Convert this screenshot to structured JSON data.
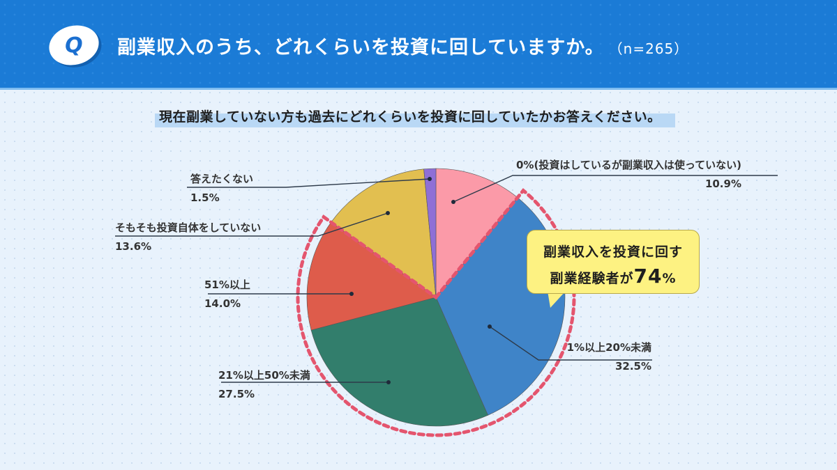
{
  "header": {
    "badge": "Q",
    "title": "副業収入のうち、どれくらいを投資に回していますか。",
    "sample_size": "（n=265）"
  },
  "subtitle": "現在副業していない方も過去にどれくらいを投資に回していたかお答えください。",
  "callout": {
    "line1": "副業収入を投資に回す",
    "line2_prefix": "副業経験者が",
    "line2_value": "74",
    "line2_suffix": "%"
  },
  "colors": {
    "header_bg": "#1b7bd6",
    "highlight_dash": "#e4556e",
    "callout_bg": "#fdf282"
  },
  "chart_data": {
    "type": "pie",
    "title": "副業収入のうち、どれくらいを投資に回していますか。（n=265）",
    "start_angle_deg": 0,
    "direction": "clockwise",
    "slices": [
      {
        "label": "0%(投資はしているが副業収入は使っていない)",
        "value": 10.9,
        "display": "10.9%",
        "color": "#fb9aa8"
      },
      {
        "label": "1%以上20%未満",
        "value": 32.5,
        "display": "32.5%",
        "color": "#3f84c8"
      },
      {
        "label": "21%以上50%未満",
        "value": 27.5,
        "display": "27.5%",
        "color": "#327e6c"
      },
      {
        "label": "51%以上",
        "value": 14.0,
        "display": "14.0%",
        "color": "#de5c4b"
      },
      {
        "label": "そもそも投資自体をしていない",
        "value": 13.6,
        "display": "13.6%",
        "color": "#e2bf50"
      },
      {
        "label": "答えたくない",
        "value": 1.5,
        "display": "1.5%",
        "color": "#8e6fd6"
      }
    ],
    "annotation": "副業収入を投資に回す副業経験者が74%",
    "highlighted_slices": [
      "1%以上20%未満",
      "21%以上50%未満",
      "51%以上"
    ]
  }
}
